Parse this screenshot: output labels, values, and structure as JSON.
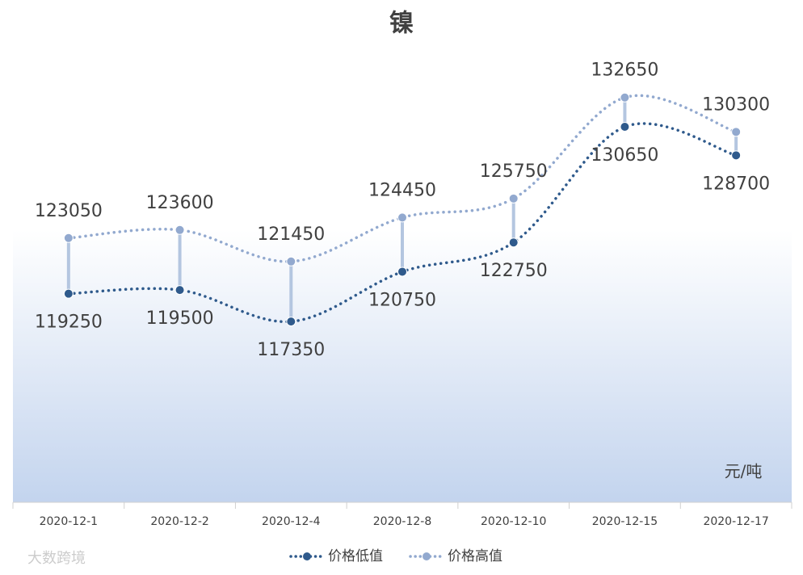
{
  "chart_data": {
    "type": "line",
    "title": "镍",
    "unit_label": "元/吨",
    "watermark": "大数跨境",
    "categories": [
      "2020-12-1",
      "2020-12-2",
      "2020-12-4",
      "2020-12-8",
      "2020-12-10",
      "2020-12-15",
      "2020-12-17"
    ],
    "series": [
      {
        "name": "价格低值",
        "color": "#2f5a8c",
        "values": [
          119250,
          119500,
          117350,
          120750,
          122750,
          130650,
          128700
        ]
      },
      {
        "name": "价格高值",
        "color": "#92a9cf",
        "values": [
          123050,
          123600,
          121450,
          124450,
          125750,
          132650,
          130300
        ]
      }
    ],
    "ylim": [
      105000,
      136000
    ],
    "hilo_color": "#b4c6e0"
  }
}
